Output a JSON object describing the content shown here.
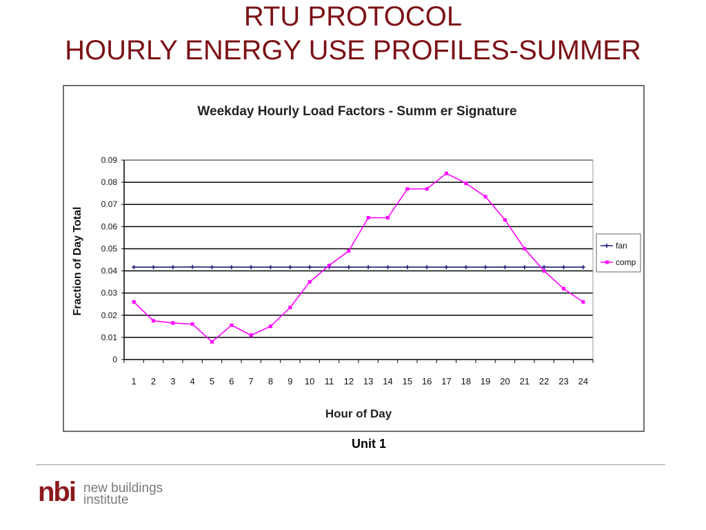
{
  "slide": {
    "title_line1": "RTU PROTOCOL",
    "title_line2": "HOURLY ENERGY USE PROFILES-SUMMER",
    "caption": "Unit 1"
  },
  "logo": {
    "mark": "nbi",
    "line1": "new buildings",
    "line2": "institute"
  },
  "chart_data": {
    "type": "line",
    "title": "Weekday Hourly Load Factors - Summ er Signature",
    "xlabel": "Hour of Day",
    "ylabel": "Fraction of Day Total",
    "categories": [
      "1",
      "2",
      "3",
      "4",
      "5",
      "6",
      "7",
      "8",
      "9",
      "10",
      "11",
      "12",
      "13",
      "14",
      "15",
      "16",
      "17",
      "18",
      "19",
      "20",
      "21",
      "22",
      "23",
      "24"
    ],
    "y_ticks": [
      "0",
      "0.01",
      "0.02",
      "0.03",
      "0.04",
      "0.05",
      "0.06",
      "0.07",
      "0.08",
      "0.09"
    ],
    "ylim": [
      0,
      0.09
    ],
    "grid": true,
    "legend_position": "right",
    "series": [
      {
        "name": "fan",
        "color": "#1f1f7a",
        "marker": "plus",
        "values": [
          0.0417,
          0.0417,
          0.0417,
          0.0418,
          0.0417,
          0.0417,
          0.0417,
          0.0417,
          0.0417,
          0.0417,
          0.0417,
          0.0417,
          0.0417,
          0.0417,
          0.0417,
          0.0417,
          0.0417,
          0.0417,
          0.0417,
          0.0417,
          0.0417,
          0.0417,
          0.0417,
          0.0417
        ]
      },
      {
        "name": "comp",
        "color": "#ff00ff",
        "marker": "square",
        "values": [
          0.026,
          0.0175,
          0.0165,
          0.016,
          0.008,
          0.0155,
          0.011,
          0.015,
          0.0235,
          0.035,
          0.0425,
          0.049,
          0.064,
          0.064,
          0.077,
          0.077,
          0.084,
          0.0795,
          0.0735,
          0.063,
          0.05,
          0.04,
          0.032,
          0.026
        ]
      }
    ]
  }
}
